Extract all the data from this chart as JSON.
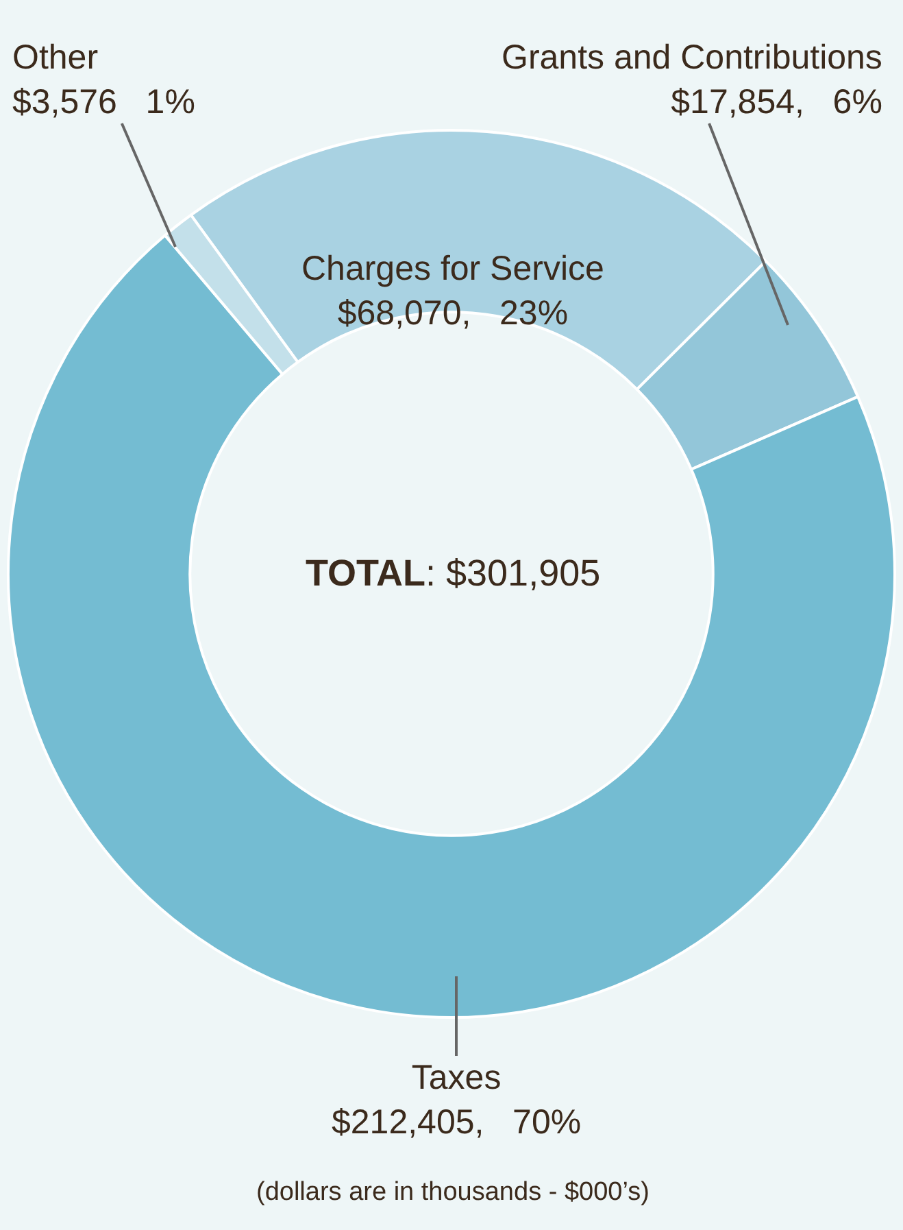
{
  "chart_data": {
    "type": "donut",
    "categories": [
      "Charges for Service",
      "Grants and Contributions",
      "Taxes",
      "Other"
    ],
    "values": [
      68070,
      17854,
      212405,
      3576
    ],
    "colors": [
      "#a9d2e2",
      "#93c6d9",
      "#74bcd2",
      "#c3e0ea"
    ],
    "value_labels": [
      "$68,070,   23%",
      "$17,854,   6%",
      "$212,405,   70%",
      "$3,576   1%"
    ],
    "annotations": [
      "TOTAL: $301,905",
      "(dollars are in thousands - $000’s)"
    ]
  }
}
